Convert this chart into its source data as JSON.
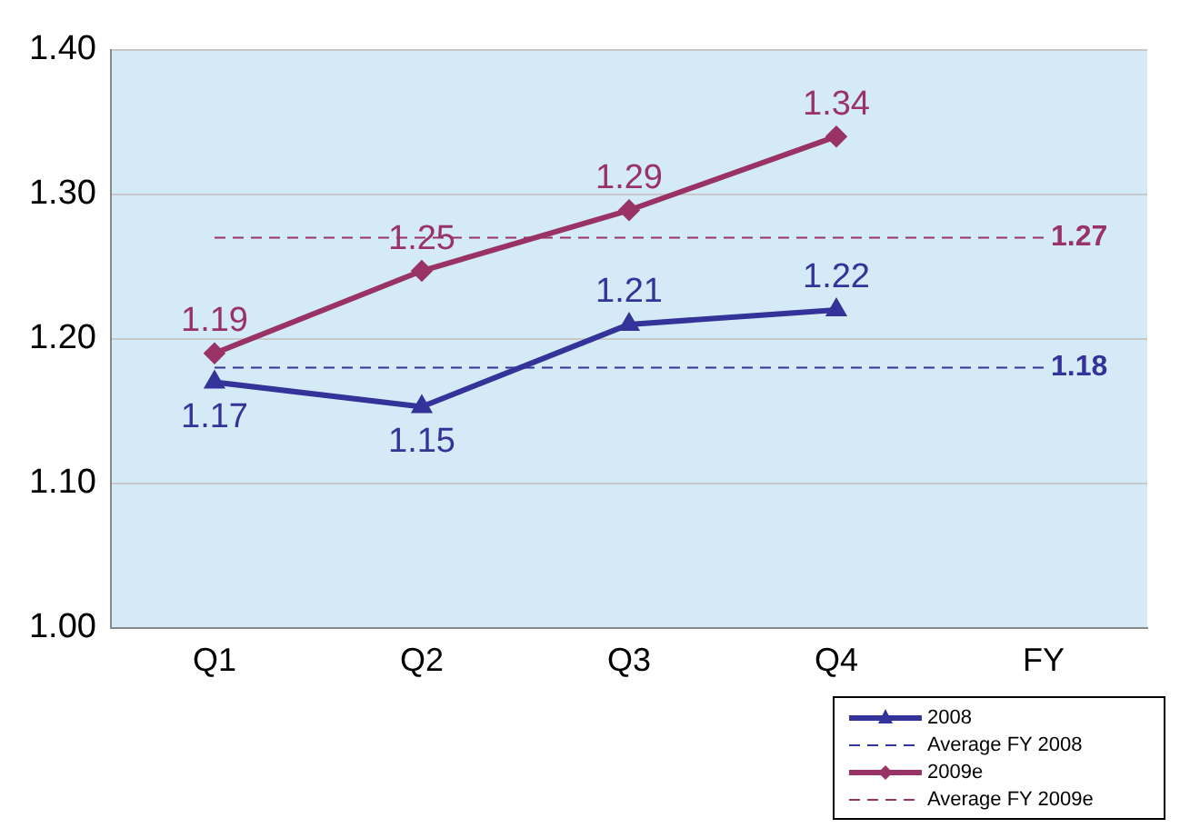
{
  "chart_data": {
    "type": "line",
    "categories": [
      "Q1",
      "Q2",
      "Q3",
      "Q4",
      "FY"
    ],
    "series": [
      {
        "name": "2008",
        "color": "#333399",
        "marker": "triangle",
        "line_style": "solid",
        "values": [
          1.17,
          1.153,
          1.21,
          1.22,
          null
        ],
        "value_labels": [
          "1.17",
          "1.15",
          "1.21",
          "1.22",
          null
        ]
      },
      {
        "name": "Average FY 2008",
        "color": "#333399",
        "marker": "none",
        "line_style": "dashed",
        "values": [
          1.18,
          1.18,
          1.18,
          1.18,
          1.18
        ],
        "value_labels": [
          null,
          null,
          null,
          null,
          "1.18"
        ]
      },
      {
        "name": "2009e",
        "color": "#993366",
        "marker": "diamond",
        "line_style": "solid",
        "values": [
          1.19,
          1.247,
          1.289,
          1.34,
          null
        ],
        "value_labels": [
          "1.19",
          "1.25",
          "1.29",
          "1.34",
          null
        ]
      },
      {
        "name": "Average FY 2009e",
        "color": "#993366",
        "marker": "none",
        "line_style": "dashed",
        "values": [
          1.27,
          1.27,
          1.27,
          1.27,
          1.27
        ],
        "value_labels": [
          null,
          null,
          null,
          null,
          "1.27"
        ]
      }
    ],
    "ylim": [
      1,
      1.4
    ],
    "yticks": [
      {
        "value": 1,
        "label": "1.00"
      },
      {
        "value": 1.1,
        "label": "1.10"
      },
      {
        "value": 1.2,
        "label": "1.20"
      },
      {
        "value": 1.3,
        "label": "1.30"
      },
      {
        "value": 1.4,
        "label": "1.40"
      }
    ],
    "grid": "y",
    "legend": "bottom right"
  }
}
